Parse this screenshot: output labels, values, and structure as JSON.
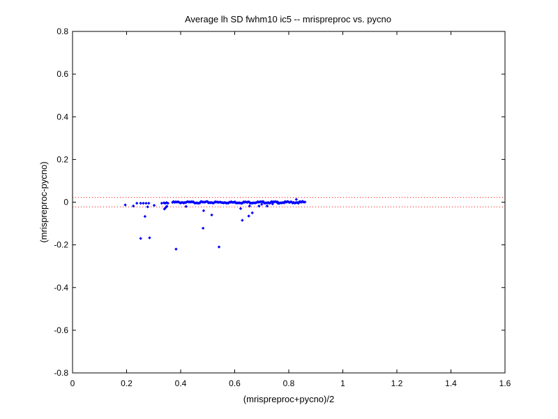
{
  "chart_data": {
    "type": "scatter",
    "title": "Average lh SD fwhm10 ic5 -- mrispreproc vs. pycno",
    "xlabel": "(mrispreproc+pycno)/2",
    "ylabel": "(mrispreproc-pycno)",
    "xlim": [
      0,
      1.6
    ],
    "ylim": [
      -0.8,
      0.8
    ],
    "x_ticks": [
      0,
      0.2,
      0.4,
      0.6,
      0.8,
      1,
      1.2,
      1.4,
      1.6
    ],
    "x_tick_labels": [
      "0",
      "0.2",
      "0.4",
      "0.6",
      "0.8",
      "1",
      "1.2",
      "1.4",
      "1.6"
    ],
    "y_ticks": [
      -0.8,
      -0.6,
      -0.4,
      -0.2,
      0,
      0.2,
      0.4,
      0.6,
      0.8
    ],
    "y_tick_labels": [
      "-0.8",
      "-0.6",
      "-0.4",
      "-0.2",
      "0",
      "0.2",
      "0.4",
      "0.6",
      "0.8"
    ],
    "grid": false,
    "marker_color": "#0000ff",
    "reference_line_color": "#ff0000",
    "reference_lines_y": [
      0.022,
      -0.022
    ],
    "dense_band": {
      "x_start": 0.37,
      "x_end": 0.86,
      "y_center": -0.001,
      "y_spread": 0.004
    },
    "points": [
      [
        0.195,
        -0.013
      ],
      [
        0.225,
        -0.018
      ],
      [
        0.238,
        -0.005
      ],
      [
        0.252,
        -0.005
      ],
      [
        0.262,
        -0.005
      ],
      [
        0.272,
        -0.005
      ],
      [
        0.282,
        -0.005
      ],
      [
        0.302,
        -0.015
      ],
      [
        0.33,
        -0.005
      ],
      [
        0.338,
        -0.003
      ],
      [
        0.343,
        -0.005
      ],
      [
        0.348,
        -0.002
      ],
      [
        0.353,
        -0.005
      ],
      [
        0.252,
        -0.17
      ],
      [
        0.285,
        -0.167
      ],
      [
        0.268,
        -0.067
      ],
      [
        0.278,
        -0.022
      ],
      [
        0.34,
        -0.032
      ],
      [
        0.345,
        -0.025
      ],
      [
        0.349,
        -0.019
      ],
      [
        0.383,
        -0.22
      ],
      [
        0.42,
        -0.02
      ],
      [
        0.483,
        -0.122
      ],
      [
        0.485,
        -0.04
      ],
      [
        0.515,
        -0.06
      ],
      [
        0.542,
        -0.21
      ],
      [
        0.628,
        -0.085
      ],
      [
        0.622,
        -0.03
      ],
      [
        0.652,
        -0.065
      ],
      [
        0.665,
        -0.05
      ],
      [
        0.655,
        -0.018
      ],
      [
        0.69,
        -0.018
      ],
      [
        0.7,
        -0.01
      ],
      [
        0.72,
        -0.018
      ],
      [
        0.74,
        -0.008
      ],
      [
        0.76,
        -0.005
      ],
      [
        0.828,
        0.013
      ],
      [
        0.84,
        0.002
      ],
      [
        0.85,
        0.004
      ]
    ]
  }
}
